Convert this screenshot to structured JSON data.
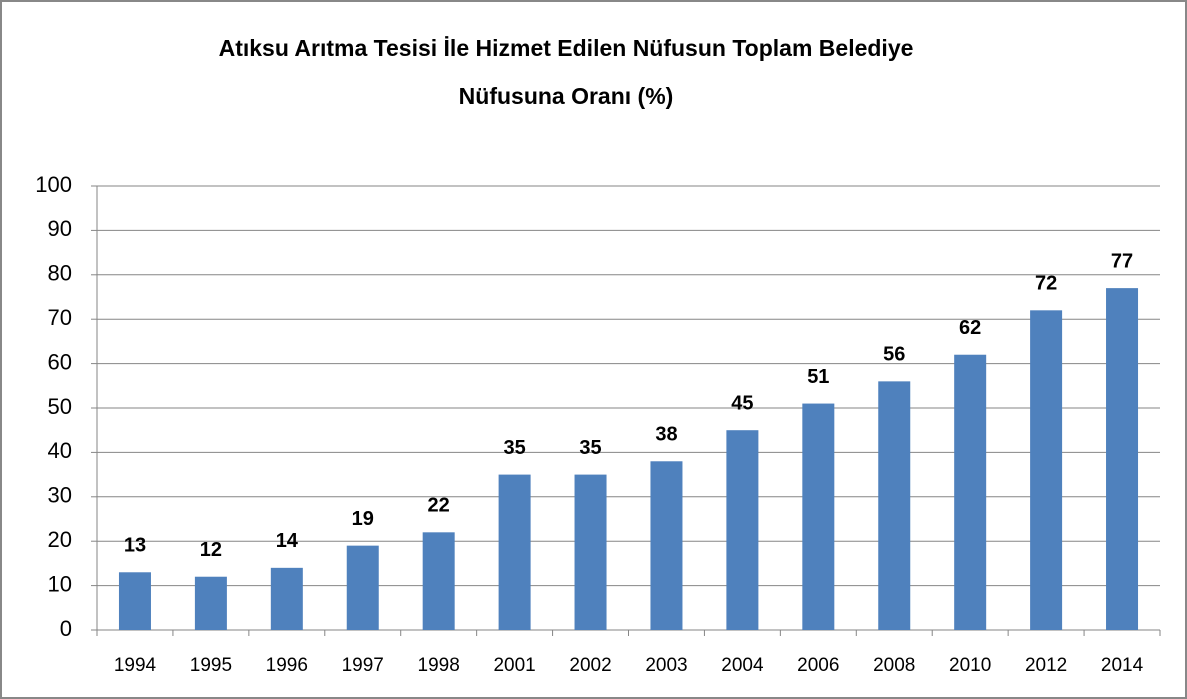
{
  "chart_data": {
    "type": "bar",
    "title": [
      "Atıksu Arıtma Tesisi İle Hizmet Edilen Nüfusun Toplam Belediye",
      "Nüfusuna Oranı (%)"
    ],
    "categories": [
      "1994",
      "1995",
      "1996",
      "1997",
      "1998",
      "2001",
      "2002",
      "2003",
      "2004",
      "2006",
      "2008",
      "2010",
      "2012",
      "2014"
    ],
    "values": [
      13,
      12,
      14,
      19,
      22,
      35,
      35,
      38,
      45,
      51,
      56,
      62,
      72,
      77
    ],
    "color": "#4f81bd",
    "ylim": [
      0,
      100
    ],
    "yticks": [
      0,
      10,
      20,
      30,
      40,
      50,
      60,
      70,
      80,
      90,
      100
    ],
    "grid": true
  }
}
